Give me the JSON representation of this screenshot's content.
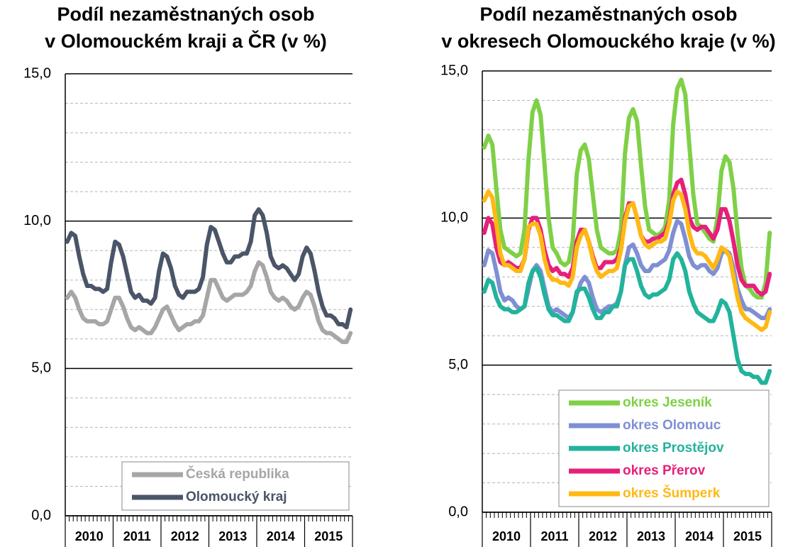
{
  "chart_data": [
    {
      "type": "line",
      "title": [
        "Podíl nezaměstnaných osob",
        "v Olomouckém kraji a ČR (v %)"
      ],
      "categories": [
        "2010",
        null,
        null,
        null,
        null,
        null,
        null,
        null,
        null,
        null,
        null,
        null,
        "2011",
        null,
        null,
        null,
        null,
        null,
        null,
        null,
        null,
        null,
        null,
        null,
        "2012",
        null,
        null,
        null,
        null,
        null,
        null,
        null,
        null,
        null,
        null,
        null,
        "2013",
        null,
        null,
        null,
        null,
        null,
        null,
        null,
        null,
        null,
        null,
        null,
        "2014",
        null,
        null,
        null,
        null,
        null,
        null,
        null,
        null,
        null,
        null,
        null,
        "2015",
        null,
        null,
        null,
        null,
        null,
        null,
        null,
        null,
        null,
        null,
        null
      ],
      "ylim": [
        0,
        15
      ],
      "yticks": [
        {
          "value": 0,
          "label": "0,0"
        },
        {
          "value": 5,
          "label": "5,0"
        },
        {
          "value": 10,
          "label": "10,0"
        },
        {
          "value": 15,
          "label": "15,0"
        }
      ],
      "yticks_minor": [
        1,
        2,
        3,
        4,
        6,
        7,
        8,
        9,
        11,
        12,
        13,
        14
      ],
      "grid": true,
      "legend": "lower right",
      "series": [
        {
          "name": "Česká republika",
          "color": "#a6a6a6",
          "values": [
            7.4,
            7.6,
            7.4,
            7.0,
            6.7,
            6.6,
            6.6,
            6.6,
            6.5,
            6.5,
            6.6,
            7.0,
            7.4,
            7.4,
            7.1,
            6.7,
            6.4,
            6.3,
            6.4,
            6.3,
            6.2,
            6.2,
            6.4,
            6.7,
            7.0,
            7.1,
            6.8,
            6.5,
            6.3,
            6.4,
            6.5,
            6.5,
            6.6,
            6.6,
            6.8,
            7.4,
            8.0,
            8.0,
            7.7,
            7.4,
            7.3,
            7.4,
            7.5,
            7.5,
            7.5,
            7.6,
            7.8,
            8.3,
            8.6,
            8.5,
            8.1,
            7.6,
            7.4,
            7.3,
            7.4,
            7.3,
            7.1,
            7.0,
            7.1,
            7.4,
            7.6,
            7.5,
            7.1,
            6.6,
            6.3,
            6.2,
            6.2,
            6.1,
            6.0,
            5.9,
            5.9,
            6.2
          ]
        },
        {
          "name": "Olomoucký kraj",
          "color": "#4a5568",
          "values": [
            9.3,
            9.6,
            9.5,
            8.8,
            8.2,
            7.8,
            7.8,
            7.7,
            7.7,
            7.6,
            7.7,
            8.6,
            9.3,
            9.2,
            8.8,
            8.2,
            7.6,
            7.4,
            7.5,
            7.3,
            7.3,
            7.2,
            7.4,
            8.3,
            8.9,
            8.8,
            8.4,
            7.8,
            7.5,
            7.4,
            7.6,
            7.6,
            7.6,
            7.7,
            8.1,
            9.2,
            9.8,
            9.7,
            9.3,
            8.9,
            8.6,
            8.6,
            8.8,
            8.8,
            8.9,
            8.9,
            9.3,
            10.2,
            10.4,
            10.2,
            9.6,
            8.8,
            8.5,
            8.4,
            8.5,
            8.4,
            8.2,
            8.0,
            8.2,
            8.8,
            9.1,
            8.9,
            8.3,
            7.6,
            7.1,
            6.8,
            6.8,
            6.7,
            6.5,
            6.5,
            6.4,
            7.0
          ]
        }
      ]
    },
    {
      "type": "line",
      "title": [
        "Podíl nezaměstnaných osob",
        "v okresech Olomouckého kraje (v %)"
      ],
      "categories": [
        "2010",
        null,
        null,
        null,
        null,
        null,
        null,
        null,
        null,
        null,
        null,
        null,
        "2011",
        null,
        null,
        null,
        null,
        null,
        null,
        null,
        null,
        null,
        null,
        null,
        "2012",
        null,
        null,
        null,
        null,
        null,
        null,
        null,
        null,
        null,
        null,
        null,
        "2013",
        null,
        null,
        null,
        null,
        null,
        null,
        null,
        null,
        null,
        null,
        null,
        "2014",
        null,
        null,
        null,
        null,
        null,
        null,
        null,
        null,
        null,
        null,
        null,
        "2015",
        null,
        null,
        null,
        null,
        null,
        null,
        null,
        null,
        null,
        null,
        null
      ],
      "ylim": [
        0,
        15
      ],
      "yticks": [
        {
          "value": 0,
          "label": "0,0"
        },
        {
          "value": 5,
          "label": "5,0"
        },
        {
          "value": 10,
          "label": "10,0"
        },
        {
          "value": 15,
          "label": "15,0"
        }
      ],
      "yticks_minor": [
        1,
        2,
        3,
        4,
        6,
        7,
        8,
        9,
        11,
        12,
        13,
        14
      ],
      "grid": true,
      "legend": "lower right",
      "series": [
        {
          "name": "okres Jeseník",
          "color": "#7fd047",
          "values": [
            12.4,
            12.8,
            12.5,
            11.0,
            9.6,
            9.0,
            8.9,
            8.8,
            8.7,
            8.8,
            9.6,
            12.0,
            13.6,
            14.0,
            13.5,
            11.8,
            10.0,
            9.0,
            8.8,
            8.5,
            8.4,
            8.5,
            9.2,
            11.5,
            12.3,
            12.5,
            12.0,
            10.8,
            9.6,
            9.0,
            8.9,
            8.8,
            8.8,
            8.9,
            9.6,
            12.2,
            13.4,
            13.7,
            13.3,
            11.8,
            10.4,
            9.6,
            9.5,
            9.4,
            9.5,
            9.7,
            10.6,
            13.2,
            14.4,
            14.7,
            14.2,
            12.5,
            10.8,
            9.8,
            9.7,
            9.5,
            9.3,
            9.2,
            10.0,
            11.6,
            12.1,
            11.9,
            11.0,
            9.5,
            8.3,
            7.7,
            7.6,
            7.4,
            7.3,
            7.3,
            7.8,
            9.5
          ]
        },
        {
          "name": "okres Olomouc",
          "color": "#7f8fd4",
          "values": [
            8.4,
            8.9,
            8.8,
            8.2,
            7.5,
            7.2,
            7.3,
            7.2,
            7.0,
            6.9,
            7.0,
            7.6,
            8.2,
            8.4,
            8.2,
            7.6,
            7.0,
            6.8,
            6.9,
            6.8,
            6.7,
            6.6,
            6.8,
            7.4,
            7.8,
            8.0,
            7.8,
            7.3,
            6.9,
            6.8,
            6.9,
            7.0,
            7.0,
            7.1,
            7.5,
            8.4,
            9.0,
            9.1,
            8.8,
            8.4,
            8.2,
            8.2,
            8.4,
            8.4,
            8.5,
            8.6,
            8.9,
            9.5,
            9.9,
            9.8,
            9.3,
            8.7,
            8.4,
            8.3,
            8.4,
            8.4,
            8.2,
            8.1,
            8.3,
            8.8,
            8.9,
            8.8,
            8.3,
            7.6,
            7.2,
            6.9,
            6.9,
            6.8,
            6.7,
            6.6,
            6.6,
            6.9
          ]
        },
        {
          "name": "okres Prostějov",
          "color": "#22b39c",
          "values": [
            7.5,
            7.9,
            7.8,
            7.3,
            7.0,
            6.9,
            6.9,
            6.8,
            6.8,
            6.9,
            7.0,
            7.8,
            8.2,
            8.3,
            8.0,
            7.4,
            6.9,
            6.7,
            6.7,
            6.6,
            6.5,
            6.5,
            6.8,
            7.5,
            7.6,
            7.6,
            7.3,
            6.9,
            6.6,
            6.6,
            6.8,
            6.8,
            7.0,
            7.0,
            7.5,
            8.4,
            8.6,
            8.6,
            8.2,
            7.7,
            7.4,
            7.3,
            7.4,
            7.4,
            7.5,
            7.6,
            7.9,
            8.6,
            8.8,
            8.6,
            8.2,
            7.5,
            7.1,
            6.8,
            6.7,
            6.6,
            6.5,
            6.5,
            6.8,
            7.2,
            7.1,
            6.8,
            6.0,
            5.2,
            4.8,
            4.7,
            4.7,
            4.6,
            4.6,
            4.4,
            4.4,
            4.8
          ]
        },
        {
          "name": "okres Přerov",
          "color": "#e6207a",
          "values": [
            9.5,
            10.0,
            9.8,
            9.0,
            8.5,
            8.4,
            8.5,
            8.4,
            8.3,
            8.3,
            8.6,
            9.6,
            10.0,
            10.0,
            9.6,
            8.9,
            8.4,
            8.2,
            8.3,
            8.1,
            8.1,
            8.0,
            8.3,
            9.2,
            9.6,
            9.6,
            9.2,
            8.7,
            8.3,
            8.3,
            8.5,
            8.5,
            8.5,
            8.6,
            9.0,
            10.0,
            10.5,
            10.5,
            10.0,
            9.4,
            9.2,
            9.2,
            9.3,
            9.3,
            9.4,
            9.5,
            9.9,
            10.8,
            11.2,
            11.3,
            10.8,
            10.0,
            9.7,
            9.6,
            9.7,
            9.7,
            9.5,
            9.3,
            9.6,
            10.3,
            10.3,
            9.9,
            9.2,
            8.4,
            7.9,
            7.7,
            7.7,
            7.7,
            7.5,
            7.4,
            7.5,
            8.1
          ]
        },
        {
          "name": "okres Šumperk",
          "color": "#ffb914",
          "values": [
            10.6,
            10.9,
            10.7,
            9.8,
            8.8,
            8.4,
            8.4,
            8.3,
            8.2,
            8.2,
            8.6,
            9.7,
            9.8,
            9.8,
            9.4,
            8.6,
            8.1,
            7.9,
            7.9,
            7.8,
            7.8,
            7.7,
            8.0,
            9.0,
            9.4,
            9.6,
            9.2,
            8.6,
            8.2,
            8.0,
            8.1,
            8.2,
            8.2,
            8.3,
            8.9,
            9.9,
            10.4,
            10.5,
            10.0,
            9.4,
            9.1,
            9.0,
            9.1,
            9.2,
            9.2,
            9.3,
            9.8,
            10.6,
            10.9,
            10.8,
            10.3,
            9.5,
            9.0,
            8.8,
            8.8,
            8.7,
            8.5,
            8.3,
            8.6,
            9.0,
            8.9,
            8.7,
            8.0,
            7.3,
            6.8,
            6.6,
            6.5,
            6.4,
            6.3,
            6.2,
            6.3,
            6.8
          ]
        }
      ]
    }
  ]
}
